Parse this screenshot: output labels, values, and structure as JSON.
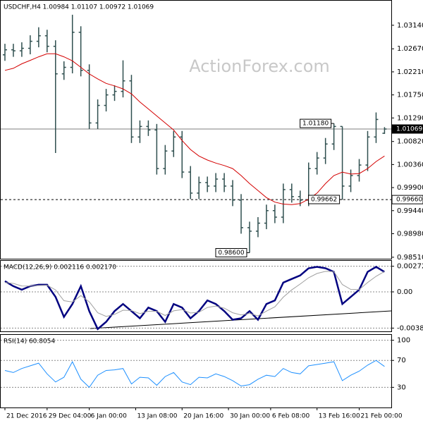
{
  "chart_data": [
    {
      "type": "ohlc",
      "title": "USDCHF,H4 1.00984 1.01107 1.00972 1.01069",
      "watermark": "ActionForex.com",
      "color": "#2f4f4f",
      "open": [
        1.0255,
        1.0265,
        1.0263,
        1.0268,
        1.0282,
        1.0293,
        1.0272,
        1.0217,
        1.023,
        1.03,
        1.0224,
        1.0119,
        1.0154,
        1.0175,
        1.0182,
        1.0203,
        1.0091,
        1.0112,
        1.0105,
        1.0028,
        1.0063,
        1.0091,
        1.0021,
        0.9979,
        1.0,
        0.9993,
        1.0007,
        0.9993,
        0.9965,
        0.991,
        0.9903,
        0.9919,
        0.9944,
        0.9931,
        0.9986,
        0.9972,
        0.9965,
        1.0028,
        1.0049,
        1.0077,
        1.0112,
        0.9993,
        1.0014,
        1.0035,
        1.0091,
        1.00984
      ],
      "high": [
        1.0277,
        1.0277,
        1.028,
        1.0294,
        1.031,
        1.0305,
        1.0284,
        1.0242,
        1.0335,
        1.0312,
        1.0236,
        1.0166,
        1.0187,
        1.0194,
        1.0244,
        1.0215,
        1.0124,
        1.0124,
        1.0117,
        1.0075,
        1.0103,
        1.0103,
        1.0033,
        1.0012,
        1.0012,
        1.0019,
        1.0019,
        1.0005,
        0.9977,
        0.9922,
        0.9931,
        0.9956,
        0.9956,
        0.9998,
        0.9998,
        0.9984,
        1.004,
        1.0061,
        1.0089,
        1.0118,
        1.0112,
        1.0026,
        1.0047,
        1.0103,
        1.014,
        1.01107
      ],
      "low": [
        1.0243,
        1.0251,
        1.0251,
        1.0256,
        1.027,
        1.026,
        1.0059,
        1.0205,
        1.0218,
        1.0212,
        1.0107,
        1.0107,
        1.0142,
        1.0163,
        1.017,
        1.0079,
        1.0079,
        1.0093,
        1.0016,
        1.0016,
        1.0051,
        1.0009,
        0.9967,
        0.9967,
        0.9981,
        0.9981,
        0.9981,
        0.9953,
        0.9898,
        0.986,
        0.9891,
        0.9907,
        0.9919,
        0.9919,
        0.996,
        0.9953,
        0.9953,
        1.0016,
        1.0037,
        1.0065,
        0.99662,
        0.9981,
        1.0002,
        1.0023,
        1.0079,
        1.00972
      ],
      "close": [
        1.0265,
        1.0263,
        1.0268,
        1.0282,
        1.0293,
        1.0272,
        1.0217,
        1.023,
        1.03,
        1.0224,
        1.0119,
        1.0154,
        1.0175,
        1.0182,
        1.0203,
        1.0091,
        1.0112,
        1.0105,
        1.0028,
        1.0063,
        1.0091,
        1.0021,
        0.9979,
        1.0,
        0.9993,
        1.0007,
        0.9993,
        0.9965,
        0.991,
        0.9903,
        0.9919,
        0.9944,
        0.9931,
        0.9986,
        0.9972,
        0.9965,
        1.0028,
        1.0049,
        1.0077,
        1.0112,
        0.9993,
        1.0014,
        1.0035,
        1.0091,
        1.0126,
        1.01069
      ],
      "series": [
        {
          "color": "#d40000",
          "width": 1,
          "values": [
            1.0224,
            1.0228,
            1.0237,
            1.0244,
            1.0251,
            1.0257,
            1.0257,
            1.0251,
            1.0243,
            1.023,
            1.0217,
            1.0207,
            1.0198,
            1.0193,
            1.0187,
            1.0177,
            1.0161,
            1.0147,
            1.0133,
            1.0119,
            1.0105,
            1.0084,
            1.0066,
            1.0053,
            1.0045,
            1.0039,
            1.0034,
            1.0028,
            1.0014,
            0.9998,
            0.9984,
            0.997,
            0.9961,
            0.9957,
            0.9956,
            0.9958,
            0.9967,
            0.9979,
            0.9998,
            1.0014,
            1.0021,
            1.0017,
            1.0018,
            1.0028,
            1.0042,
            1.0053
          ]
        }
      ],
      "xlim": [
        -0.5,
        45.8
      ],
      "ylim": [
        0.9848,
        1.0363
      ],
      "yticks": [
        {
          "value": 1.0314,
          "label": "1.03140"
        },
        {
          "value": 1.0267,
          "label": "1.02670"
        },
        {
          "value": 1.0221,
          "label": "1.02210"
        },
        {
          "value": 1.0175,
          "label": "1.01750"
        },
        {
          "value": 1.0129,
          "label": "1.01290"
        },
        {
          "value": 1.0082,
          "label": "1.00820"
        },
        {
          "value": 1.0036,
          "label": "1.00360"
        },
        {
          "value": 0.999,
          "label": "0.99900"
        },
        {
          "value": 0.9944,
          "label": "0.99440"
        },
        {
          "value": 0.9898,
          "label": "0.98980"
        },
        {
          "value": 0.9851,
          "label": "0.98510"
        }
      ],
      "levels": [
        {
          "value": 1.01069,
          "label": "1.01069",
          "style": "solid"
        },
        {
          "value": 0.9966,
          "label": "0.99660",
          "style": "dashed"
        }
      ],
      "annotations": [
        {
          "value": 1.0118,
          "label": "1.01180"
        },
        {
          "value": 0.99662,
          "label": "0.99662"
        },
        {
          "value": 0.986,
          "label": "0.98600"
        }
      ]
    },
    {
      "type": "line",
      "title": "MACD(12,26,9) 0.002116 0.002170",
      "series": [
        {
          "color": "#000080",
          "width": 2.5,
          "values": [
            0.00114,
            0.00061,
            0.00023,
            0.00061,
            0.00076,
            0.00076,
            -0.00053,
            -0.00266,
            -0.00129,
            0.00061,
            -0.00205,
            -0.00395,
            -0.00319,
            -0.00205,
            -0.00129,
            -0.00205,
            -0.00281,
            -0.00167,
            -0.00205,
            -0.00319,
            -0.00129,
            -0.00167,
            -0.00281,
            -0.00205,
            -0.00091,
            -0.00129,
            -0.00205,
            -0.00296,
            -0.00281,
            -0.00205,
            -0.00296,
            -0.00129,
            -0.00091,
            0.00099,
            0.00137,
            0.00175,
            0.00251,
            0.00266,
            0.00251,
            0.00213,
            -0.00129,
            -0.00053,
            0.00023,
            0.00213,
            0.00266,
            0.00212
          ]
        },
        {
          "color": "#a0a0a0",
          "width": 1,
          "values": [
            0.001,
            0.0009,
            0.00063,
            0.00062,
            0.00068,
            0.00071,
            0.00021,
            -0.00094,
            -0.00108,
            -0.0004,
            -0.00106,
            -0.00222,
            -0.00261,
            -0.00239,
            -0.00195,
            -0.00199,
            -0.00232,
            -0.00206,
            -0.00206,
            -0.00251,
            -0.00202,
            -0.00188,
            -0.00225,
            -0.00217,
            -0.00166,
            -0.00151,
            -0.00173,
            -0.00222,
            -0.00245,
            -0.00229,
            -0.00256,
            -0.00205,
            -0.00159,
            -0.00056,
            0.00021,
            0.00083,
            0.0015,
            0.00196,
            0.00218,
            0.00216,
            0.00078,
            0.00026,
            0.00025,
            0.001,
            0.00166,
            0.00217
          ]
        }
      ],
      "xlim": [
        -0.5,
        45.8
      ],
      "ylim": [
        -0.0042,
        0.0033
      ],
      "yticks": [
        0.002727,
        {
          "value": 0,
          "label": "0.00"
        },
        -0.003854
      ]
    },
    {
      "type": "line",
      "title": "RSI(14) 60.8054",
      "series": [
        {
          "color": "#1e90ff",
          "width": 1,
          "values": [
            55,
            52,
            58,
            62,
            66,
            50,
            38,
            45,
            68,
            42,
            30,
            48,
            55,
            56,
            58,
            35,
            45,
            44,
            33,
            46,
            52,
            38,
            34,
            45,
            44,
            50,
            46,
            40,
            32,
            34,
            42,
            48,
            46,
            58,
            52,
            50,
            62,
            64,
            66,
            68,
            40,
            48,
            54,
            63,
            70,
            61
          ]
        }
      ],
      "xlim": [
        -0.5,
        45.8
      ],
      "ylim": [
        0,
        108
      ],
      "yticks": [
        100,
        70,
        30
      ],
      "xticks": [
        {
          "value": 0,
          "label": "21 Dec 2016"
        },
        {
          "value": 5,
          "label": "29 Dec 04:00"
        },
        {
          "value": 10,
          "label": "6 Jan 00:00"
        },
        {
          "value": 15.5,
          "label": "13 Jan 08:00"
        },
        {
          "value": 21,
          "label": "20 Jan 16:00"
        },
        {
          "value": 26.5,
          "label": "30 Jan 00:00"
        },
        {
          "value": 31.5,
          "label": "6 Feb 08:00"
        },
        {
          "value": 37,
          "label": "13 Feb 16:00"
        },
        {
          "value": 42,
          "label": "21 Feb 00:00"
        }
      ]
    }
  ]
}
